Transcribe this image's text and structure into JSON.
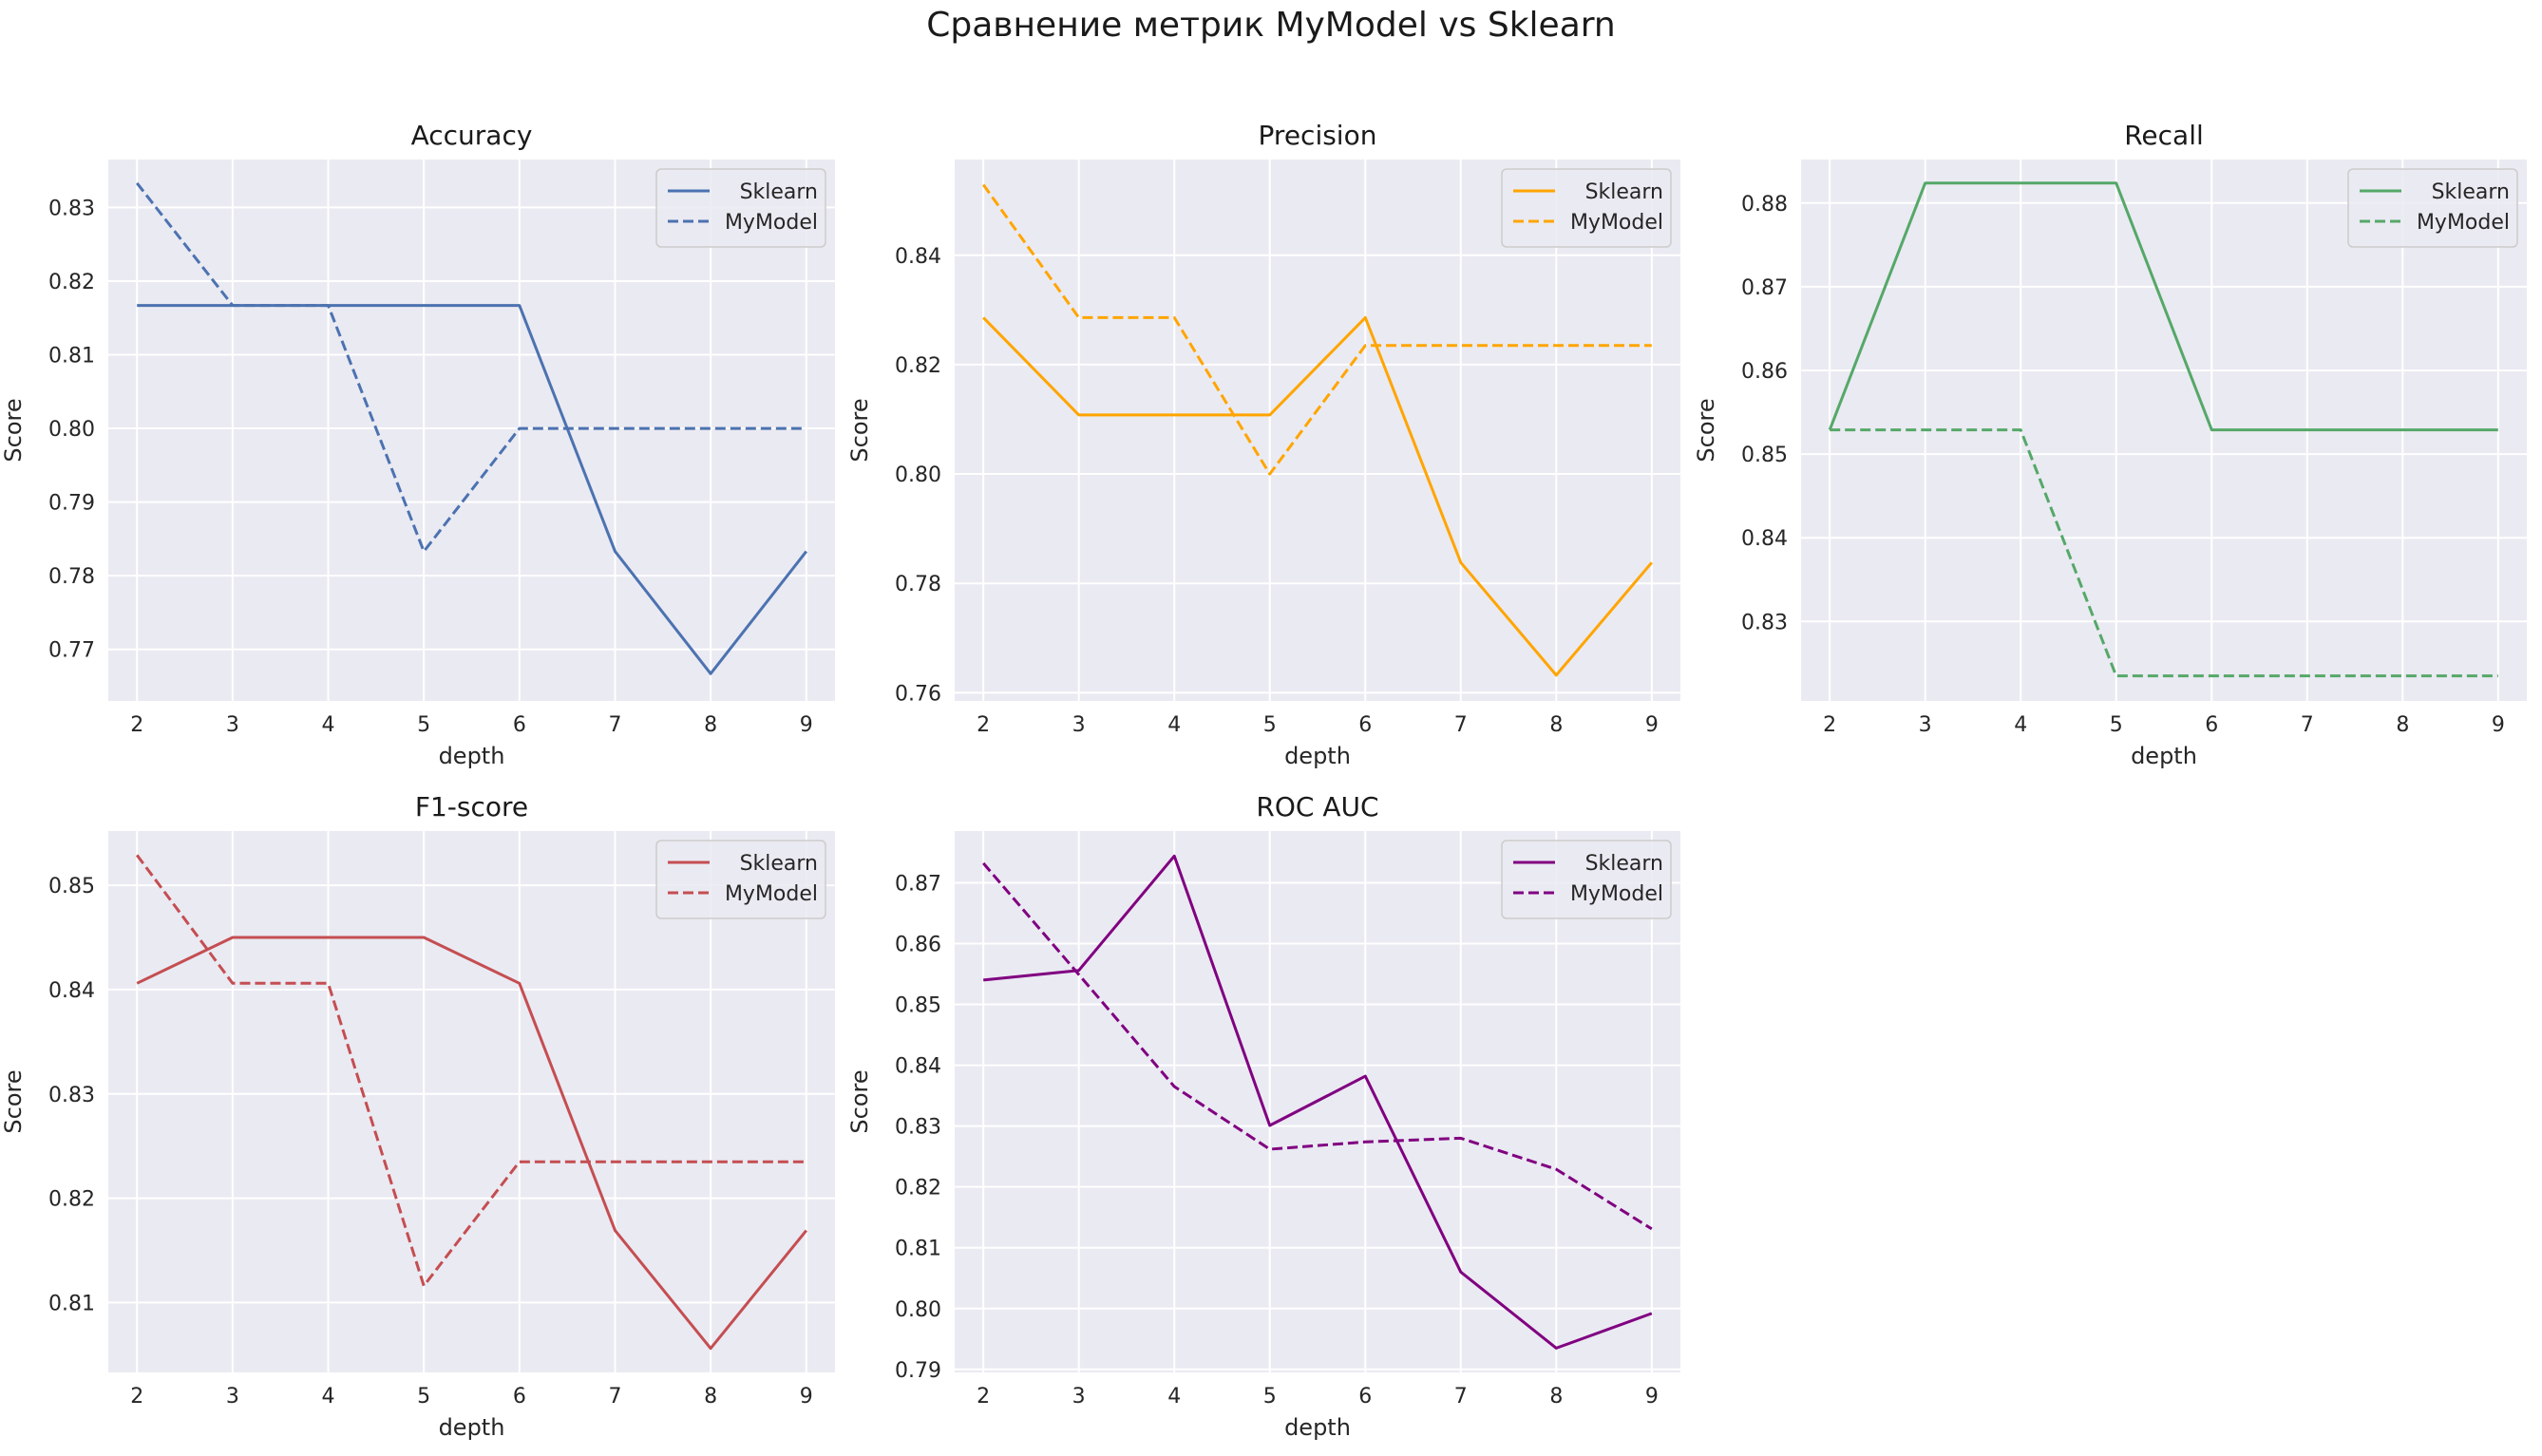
{
  "figure": {
    "title": "Сравнение метрик MyModel vs Sklearn"
  },
  "chart_data": [
    {
      "type": "line",
      "title": "Accuracy",
      "xlabel": "depth",
      "ylabel": "Score",
      "x": [
        2,
        3,
        4,
        5,
        6,
        7,
        8,
        9
      ],
      "xlim": [
        1.7,
        9.3
      ],
      "ylim": [
        0.763,
        0.8365
      ],
      "yticks": [
        0.77,
        0.78,
        0.79,
        0.8,
        0.81,
        0.82,
        0.83
      ],
      "ytick_labels": [
        "0.77",
        "0.78",
        "0.79",
        "0.80",
        "0.81",
        "0.82",
        "0.83"
      ],
      "legend_position": "upper right",
      "grid": true,
      "series": [
        {
          "name": "Sklearn",
          "style": "solid",
          "color": "#4c72b0",
          "values": [
            0.8167,
            0.8167,
            0.8167,
            0.8167,
            0.8167,
            0.7833,
            0.7667,
            0.7833
          ]
        },
        {
          "name": "MyModel",
          "style": "dashed",
          "color": "#4c72b0",
          "values": [
            0.8333,
            0.8167,
            0.8167,
            0.7833,
            0.8,
            0.8,
            0.8,
            0.8
          ]
        }
      ]
    },
    {
      "type": "line",
      "title": "Precision",
      "xlabel": "depth",
      "ylabel": "Score",
      "x": [
        2,
        3,
        4,
        5,
        6,
        7,
        8,
        9
      ],
      "xlim": [
        1.7,
        9.3
      ],
      "ylim": [
        0.7585,
        0.8575
      ],
      "yticks": [
        0.76,
        0.78,
        0.8,
        0.82,
        0.84
      ],
      "ytick_labels": [
        "0.76",
        "0.78",
        "0.80",
        "0.82",
        "0.84"
      ],
      "legend_position": "upper right",
      "grid": true,
      "series": [
        {
          "name": "Sklearn",
          "style": "solid",
          "color": "#ffa500",
          "values": [
            0.8286,
            0.8108,
            0.8108,
            0.8108,
            0.8286,
            0.7838,
            0.7632,
            0.7838
          ]
        },
        {
          "name": "MyModel",
          "style": "dashed",
          "color": "#ffa500",
          "values": [
            0.8529,
            0.8286,
            0.8286,
            0.8,
            0.8235,
            0.8235,
            0.8235,
            0.8235
          ]
        }
      ]
    },
    {
      "type": "line",
      "title": "Recall",
      "xlabel": "depth",
      "ylabel": "Score",
      "x": [
        2,
        3,
        4,
        5,
        6,
        7,
        8,
        9
      ],
      "xlim": [
        1.7,
        9.3
      ],
      "ylim": [
        0.8205,
        0.8852
      ],
      "yticks": [
        0.83,
        0.84,
        0.85,
        0.86,
        0.87,
        0.88
      ],
      "ytick_labels": [
        "0.83",
        "0.84",
        "0.85",
        "0.86",
        "0.87",
        "0.88"
      ],
      "legend_position": "upper right",
      "grid": true,
      "series": [
        {
          "name": "Sklearn",
          "style": "solid",
          "color": "#55a868",
          "values": [
            0.8529,
            0.8824,
            0.8824,
            0.8824,
            0.8529,
            0.8529,
            0.8529,
            0.8529
          ]
        },
        {
          "name": "MyModel",
          "style": "dashed",
          "color": "#55a868",
          "values": [
            0.8529,
            0.8529,
            0.8529,
            0.8235,
            0.8235,
            0.8235,
            0.8235,
            0.8235
          ]
        }
      ]
    },
    {
      "type": "line",
      "title": "F1-score",
      "xlabel": "depth",
      "ylabel": "Score",
      "x": [
        2,
        3,
        4,
        5,
        6,
        7,
        8,
        9
      ],
      "xlim": [
        1.7,
        9.3
      ],
      "ylim": [
        0.8033,
        0.8552
      ],
      "yticks": [
        0.81,
        0.82,
        0.83,
        0.84,
        0.85
      ],
      "ytick_labels": [
        "0.81",
        "0.82",
        "0.83",
        "0.84",
        "0.85"
      ],
      "legend_position": "upper right",
      "grid": true,
      "series": [
        {
          "name": "Sklearn",
          "style": "solid",
          "color": "#c44e52",
          "values": [
            0.8406,
            0.845,
            0.845,
            0.845,
            0.8406,
            0.8169,
            0.8056,
            0.8169
          ]
        },
        {
          "name": "MyModel",
          "style": "dashed",
          "color": "#c44e52",
          "values": [
            0.8529,
            0.8406,
            0.8406,
            0.8116,
            0.8235,
            0.8235,
            0.8235,
            0.8235
          ]
        }
      ]
    },
    {
      "type": "line",
      "title": "ROC AUC",
      "xlabel": "depth",
      "ylabel": "Score",
      "x": [
        2,
        3,
        4,
        5,
        6,
        7,
        8,
        9
      ],
      "xlim": [
        1.7,
        9.3
      ],
      "ylim": [
        0.7895,
        0.8785
      ],
      "yticks": [
        0.79,
        0.8,
        0.81,
        0.82,
        0.83,
        0.84,
        0.85,
        0.86,
        0.87
      ],
      "ytick_labels": [
        "0.79",
        "0.80",
        "0.81",
        "0.82",
        "0.83",
        "0.84",
        "0.85",
        "0.86",
        "0.87"
      ],
      "legend_position": "upper right",
      "grid": true,
      "series": [
        {
          "name": "Sklearn",
          "style": "solid",
          "color": "#800080",
          "values": [
            0.854,
            0.8556,
            0.8744,
            0.8301,
            0.8382,
            0.806,
            0.7935,
            0.7992
          ]
        },
        {
          "name": "MyModel",
          "style": "dashed",
          "color": "#800080",
          "values": [
            0.8732,
            0.8549,
            0.8365,
            0.8262,
            0.8274,
            0.828,
            0.8229,
            0.8131
          ]
        }
      ]
    }
  ]
}
